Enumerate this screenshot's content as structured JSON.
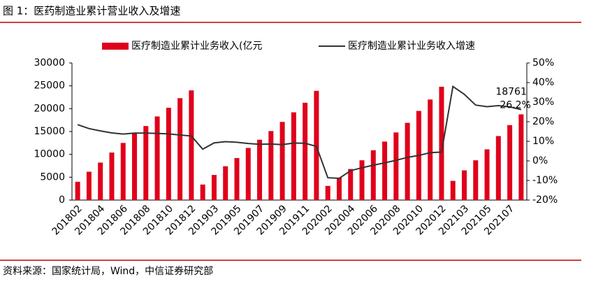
{
  "title": "图 1：医药制造业累计营业收入及增速",
  "source": "资料来源：国家统计局，Wind，中信证券研究部",
  "chart_data": {
    "type": "bar_line",
    "categories": [
      "201802",
      null,
      "201804",
      null,
      "201806",
      null,
      "201808",
      null,
      "201810",
      null,
      "201812",
      null,
      "201903",
      null,
      "201905",
      null,
      "201907",
      null,
      "201909",
      null,
      "201911",
      null,
      "202002",
      null,
      "202004",
      null,
      "202006",
      null,
      "202008",
      null,
      "202010",
      null,
      "202012",
      null,
      "202103",
      null,
      "202105",
      null,
      "202107",
      null
    ],
    "series": [
      {
        "name": "医疗制造业累计业务收入(亿元",
        "type": "bar",
        "color": "#e0001b",
        "values": [
          4000,
          6200,
          8200,
          10400,
          12500,
          14700,
          16200,
          18300,
          20200,
          22300,
          24000,
          3400,
          5500,
          7400,
          9200,
          11400,
          13200,
          15100,
          17100,
          19200,
          21300,
          23900,
          3100,
          4900,
          6800,
          8700,
          10900,
          12800,
          14800,
          16900,
          19500,
          22000,
          24800,
          4200,
          6500,
          8700,
          11100,
          14000,
          16400,
          18761
        ],
        "value_labels": [
          null,
          null,
          null,
          null,
          null,
          null,
          null,
          null,
          null,
          null,
          null,
          null,
          null,
          null,
          null,
          null,
          null,
          null,
          null,
          null,
          null,
          null,
          null,
          null,
          null,
          null,
          null,
          null,
          null,
          null,
          null,
          null,
          null,
          null,
          null,
          null,
          null,
          null,
          null,
          "18761"
        ]
      },
      {
        "name": "医疗制造业累计业务收入增速",
        "type": "line",
        "axis": "y2",
        "color": "#333333",
        "values": [
          18.5,
          16.5,
          15.3,
          14.3,
          13.7,
          14.2,
          14.2,
          14.0,
          13.8,
          13.2,
          12.7,
          6.0,
          9.2,
          9.8,
          9.5,
          8.9,
          8.5,
          8.6,
          8.3,
          9.1,
          9.0,
          7.4,
          -8.6,
          -8.9,
          -5.0,
          -3.5,
          -2.2,
          -1.0,
          0.3,
          1.8,
          2.8,
          4.2,
          4.5,
          38.0,
          34.0,
          28.5,
          27.7,
          28.2,
          27.6,
          26.2
        ],
        "value_labels": [
          null,
          null,
          null,
          null,
          null,
          null,
          null,
          null,
          null,
          null,
          null,
          null,
          null,
          null,
          null,
          null,
          null,
          null,
          null,
          null,
          null,
          null,
          null,
          null,
          null,
          null,
          null,
          null,
          null,
          null,
          null,
          null,
          null,
          null,
          null,
          null,
          null,
          null,
          null,
          "26.2%"
        ]
      }
    ],
    "ylim": [
      0,
      30000
    ],
    "yticks": [
      0,
      5000,
      10000,
      15000,
      20000,
      25000,
      30000
    ],
    "y2lim": [
      -20,
      50
    ],
    "y2ticks": [
      {
        "value": -20,
        "label": "-20%"
      },
      {
        "value": -10,
        "label": "-10%"
      },
      {
        "value": 0,
        "label": "0%"
      },
      {
        "value": 10,
        "label": "10%"
      },
      {
        "value": 20,
        "label": "20%"
      },
      {
        "value": 30,
        "label": "30%"
      },
      {
        "value": 40,
        "label": "40%"
      },
      {
        "value": 50,
        "label": "50%"
      }
    ],
    "legend": "top"
  }
}
